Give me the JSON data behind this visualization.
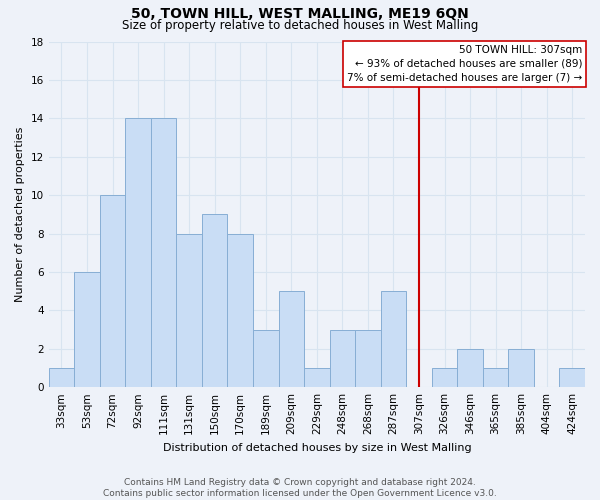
{
  "title": "50, TOWN HILL, WEST MALLING, ME19 6QN",
  "subtitle": "Size of property relative to detached houses in West Malling",
  "xlabel": "Distribution of detached houses by size in West Malling",
  "ylabel": "Number of detached properties",
  "bar_labels": [
    "33sqm",
    "53sqm",
    "72sqm",
    "92sqm",
    "111sqm",
    "131sqm",
    "150sqm",
    "170sqm",
    "189sqm",
    "209sqm",
    "229sqm",
    "248sqm",
    "268sqm",
    "287sqm",
    "307sqm",
    "326sqm",
    "346sqm",
    "365sqm",
    "385sqm",
    "404sqm",
    "424sqm"
  ],
  "bar_values": [
    1,
    6,
    10,
    14,
    14,
    8,
    9,
    8,
    3,
    5,
    1,
    3,
    3,
    5,
    0,
    1,
    2,
    1,
    2,
    0,
    1
  ],
  "bar_color": "#c9ddf5",
  "bar_edge_color": "#87aed4",
  "grid_color": "#d8e4f0",
  "vline_x_index": 14,
  "vline_color": "#cc0000",
  "annotation_line1": "50 TOWN HILL: 307sqm",
  "annotation_line2": "← 93% of detached houses are smaller (89)",
  "annotation_line3": "7% of semi-detached houses are larger (7) →",
  "ylim": [
    0,
    18
  ],
  "yticks": [
    0,
    2,
    4,
    6,
    8,
    10,
    12,
    14,
    16,
    18
  ],
  "footer_line1": "Contains HM Land Registry data © Crown copyright and database right 2024.",
  "footer_line2": "Contains public sector information licensed under the Open Government Licence v3.0.",
  "background_color": "#eef2f9",
  "plot_bg_color": "#eef2f9",
  "title_fontsize": 10,
  "subtitle_fontsize": 8.5,
  "axis_label_fontsize": 8,
  "tick_fontsize": 7.5,
  "annotation_fontsize": 7.5,
  "footer_fontsize": 6.5
}
